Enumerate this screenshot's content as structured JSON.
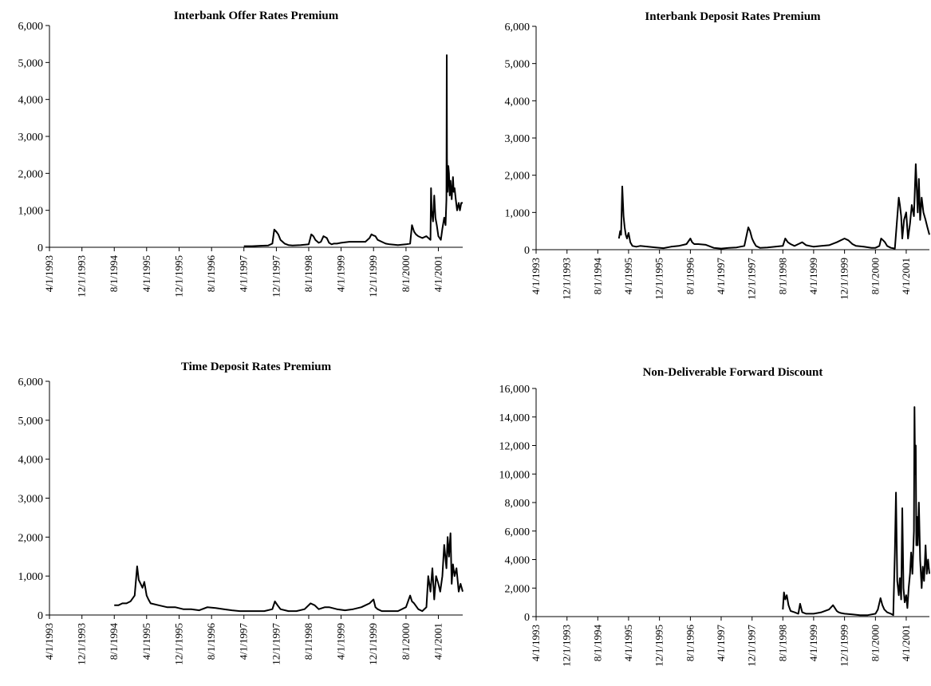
{
  "chart_data": [
    {
      "type": "line",
      "title": "Interbank Offer Rates Premium",
      "x_tick_labels": [
        "4/1/1993",
        "12/1/1993",
        "8/1/1994",
        "4/1/1995",
        "12/1/1995",
        "8/1/1996",
        "4/1/1997",
        "12/1/1997",
        "8/1/1998",
        "4/1/1999",
        "12/1/1999",
        "8/1/2000",
        "4/1/2001"
      ],
      "y_tick_labels": [
        "0",
        "1,000",
        "2,000",
        "3,000",
        "4,000",
        "5,000",
        "6,000"
      ],
      "ylim": [
        0,
        6000
      ],
      "xlim": [
        "4/1/1993",
        "10/1/2001"
      ],
      "grid": false,
      "series": [
        {
          "color": "#000000",
          "x": [
            "4/1/1997",
            "6/1/1997",
            "8/1/1997",
            "10/1/1997",
            "11/1/1997",
            "11/15/1997",
            "12/1/1997",
            "12/15/1997",
            "1/1/1998",
            "2/1/1998",
            "3/1/1998",
            "4/1/1998",
            "6/1/1998",
            "8/1/1998",
            "8/20/1998",
            "9/5/1998",
            "9/20/1998",
            "10/15/1998",
            "11/1/1998",
            "11/20/1998",
            "12/15/1998",
            "1/1/1999",
            "1/20/1999",
            "2/5/1999",
            "3/1/1999",
            "4/1/1999",
            "6/1/1999",
            "8/1/1999",
            "10/1/1999",
            "11/1/1999",
            "11/15/1999",
            "12/1/1999",
            "12/15/1999",
            "1/1/2000",
            "2/1/2000",
            "3/1/2000",
            "4/1/2000",
            "6/1/2000",
            "8/1/2000",
            "9/1/2000",
            "9/15/2000",
            "10/1/2000",
            "10/15/2000",
            "11/1/2000",
            "12/1/2000",
            "1/1/2001",
            "2/1/2001",
            "2/5/2001",
            "2/10/2001",
            "2/20/2001",
            "3/1/2001",
            "3/10/2001",
            "3/20/2001",
            "4/1/2001",
            "4/20/2001",
            "5/1/2001",
            "5/15/2001",
            "5/25/2001",
            "6/1/2001",
            "6/3/2001",
            "6/5/2001",
            "6/10/2001",
            "6/15/2001",
            "6/20/2001",
            "6/25/2001",
            "7/1/2001",
            "7/10/2001",
            "7/20/2001",
            "7/25/2001",
            "8/1/2001",
            "8/10/2001",
            "8/20/2001",
            "9/1/2001",
            "9/10/2001",
            "9/20/2001",
            "10/1/2001"
          ],
          "y": [
            30,
            30,
            40,
            50,
            100,
            480,
            420,
            350,
            200,
            100,
            60,
            50,
            60,
            80,
            350,
            300,
            200,
            120,
            150,
            300,
            250,
            120,
            80,
            100,
            100,
            120,
            150,
            150,
            150,
            250,
            350,
            320,
            300,
            200,
            150,
            100,
            80,
            60,
            80,
            100,
            600,
            420,
            350,
            300,
            250,
            300,
            200,
            1600,
            1000,
            700,
            1400,
            800,
            600,
            300,
            200,
            500,
            800,
            600,
            1300,
            5200,
            2400,
            1500,
            2200,
            2000,
            1400,
            1800,
            1300,
            1900,
            1500,
            1600,
            1300,
            1000,
            1200,
            1000,
            1200,
            1200
          ]
        }
      ]
    },
    {
      "type": "line",
      "title": "Interbank Deposit Rates Premium",
      "x_tick_labels": [
        "4/1/1993",
        "12/1/1993",
        "8/1/1994",
        "4/1/1995",
        "12/1/1995",
        "8/1/1996",
        "4/1/1997",
        "12/1/1997",
        "8/1/1998",
        "4/1/1999",
        "12/1/1999",
        "8/1/2000",
        "4/1/2001"
      ],
      "y_tick_labels": [
        "0",
        "1,000",
        "2,000",
        "3,000",
        "4,000",
        "5,000",
        "6,000"
      ],
      "ylim": [
        0,
        6000
      ],
      "xlim": [
        "4/1/1993",
        "10/1/2001"
      ],
      "grid": false,
      "series": [
        {
          "color": "#000000",
          "x": [
            "1/15/1995",
            "1/25/1995",
            "2/1/1995",
            "2/10/1995",
            "2/20/1995",
            "3/1/1995",
            "3/10/1995",
            "3/20/1995",
            "4/1/1995",
            "4/15/1995",
            "5/1/1995",
            "6/1/1995",
            "7/1/1995",
            "9/1/1995",
            "11/1/1995",
            "1/1/1996",
            "3/1/1996",
            "5/1/1996",
            "7/1/1996",
            "8/1/1996",
            "8/15/1996",
            "9/1/1996",
            "10/1/1996",
            "12/1/1996",
            "2/1/1997",
            "4/1/1997",
            "6/1/1997",
            "8/1/1997",
            "10/1/1997",
            "11/1/1997",
            "11/15/1997",
            "12/1/1997",
            "12/15/1997",
            "1/1/1998",
            "2/1/1998",
            "4/1/1998",
            "6/1/1998",
            "8/1/1998",
            "8/20/1998",
            "9/10/1998",
            "10/1/1998",
            "11/1/1998",
            "12/1/1998",
            "1/1/1999",
            "2/1/1999",
            "4/1/1999",
            "6/1/1999",
            "8/1/1999",
            "10/1/1999",
            "12/1/1999",
            "1/1/2000",
            "2/1/2000",
            "3/1/2000",
            "5/1/2000",
            "7/1/2000",
            "8/1/2000",
            "9/1/2000",
            "9/15/2000",
            "10/1/2000",
            "10/15/2000",
            "11/1/2000",
            "12/1/2000",
            "1/1/2001",
            "2/1/2001",
            "2/10/2001",
            "2/20/2001",
            "3/1/2001",
            "3/15/2001",
            "4/1/2001",
            "4/15/2001",
            "5/1/2001",
            "5/15/2001",
            "6/1/2001",
            "6/15/2001",
            "7/1/2001",
            "7/10/2001",
            "7/20/2001",
            "8/1/2001",
            "8/15/2001",
            "9/1/2001",
            "9/15/2001",
            "10/1/2001"
          ],
          "y": [
            300,
            500,
            400,
            1700,
            900,
            600,
            400,
            300,
            450,
            200,
            100,
            80,
            100,
            80,
            60,
            40,
            80,
            100,
            150,
            300,
            200,
            150,
            150,
            130,
            50,
            30,
            50,
            60,
            100,
            600,
            500,
            300,
            200,
            100,
            50,
            60,
            80,
            100,
            300,
            200,
            150,
            100,
            150,
            200,
            120,
            80,
            100,
            120,
            200,
            300,
            250,
            150,
            100,
            80,
            50,
            50,
            100,
            300,
            250,
            200,
            100,
            50,
            30,
            1400,
            1200,
            900,
            300,
            800,
            1000,
            300,
            700,
            1200,
            900,
            2300,
            1000,
            1900,
            800,
            1400,
            1000,
            800,
            600,
            400
          ]
        }
      ]
    },
    {
      "type": "line",
      "title": "Time Deposit Rates Premium",
      "x_tick_labels": [
        "4/1/1993",
        "12/1/1993",
        "8/1/1994",
        "4/1/1995",
        "12/1/1995",
        "8/1/1996",
        "4/1/1997",
        "12/1/1997",
        "8/1/1998",
        "4/1/1999",
        "12/1/1999",
        "8/1/2000",
        "4/1/2001"
      ],
      "y_tick_labels": [
        "0",
        "1,000",
        "2,000",
        "3,000",
        "4,000",
        "5,000",
        "6,000"
      ],
      "ylim": [
        0,
        6000
      ],
      "xlim": [
        "4/1/1993",
        "10/1/2001"
      ],
      "grid": false,
      "series": [
        {
          "color": "#000000",
          "x": [
            "8/1/1994",
            "9/1/1994",
            "10/1/1994",
            "11/1/1994",
            "12/1/1994",
            "1/1/1995",
            "1/20/1995",
            "2/1/1995",
            "2/15/1995",
            "3/1/1995",
            "3/15/1995",
            "4/1/1995",
            "4/15/1995",
            "5/1/1995",
            "7/1/1995",
            "9/1/1995",
            "11/1/1995",
            "1/1/1996",
            "3/1/1996",
            "5/1/1996",
            "7/1/1996",
            "9/1/1996",
            "11/1/1996",
            "1/1/1997",
            "3/1/1997",
            "5/1/1997",
            "7/1/1997",
            "9/1/1997",
            "11/1/1997",
            "11/20/1997",
            "12/10/1997",
            "1/1/1998",
            "3/1/1998",
            "5/1/1998",
            "7/1/1998",
            "8/15/1998",
            "9/15/1998",
            "10/15/1998",
            "12/1/1998",
            "1/1/1999",
            "3/1/1999",
            "5/1/1999",
            "7/1/1999",
            "9/1/1999",
            "10/1/1999",
            "11/1/1999",
            "12/1/1999",
            "12/15/1999",
            "1/1/2000",
            "2/1/2000",
            "4/1/2000",
            "6/1/2000",
            "8/1/2000",
            "9/1/2000",
            "9/15/2000",
            "10/1/2000",
            "11/1/2000",
            "12/1/2000",
            "1/1/2001",
            "1/15/2001",
            "2/1/2001",
            "2/15/2001",
            "3/1/2001",
            "3/15/2001",
            "4/1/2001",
            "4/15/2001",
            "5/1/2001",
            "5/15/2001",
            "6/1/2001",
            "6/10/2001",
            "6/20/2001",
            "7/1/2001",
            "7/10/2001",
            "7/20/2001",
            "8/1/2001",
            "8/15/2001",
            "9/1/2001",
            "9/15/2001",
            "10/1/2001"
          ],
          "y": [
            250,
            250,
            300,
            300,
            350,
            500,
            1250,
            900,
            800,
            700,
            850,
            500,
            400,
            300,
            250,
            200,
            200,
            150,
            150,
            120,
            200,
            180,
            150,
            120,
            100,
            100,
            100,
            100,
            150,
            350,
            250,
            150,
            100,
            100,
            150,
            300,
            250,
            150,
            200,
            200,
            150,
            120,
            150,
            200,
            250,
            300,
            400,
            200,
            150,
            100,
            100,
            100,
            200,
            500,
            350,
            300,
            150,
            100,
            200,
            1000,
            600,
            1200,
            400,
            1000,
            800,
            600,
            1000,
            1800,
            1200,
            2000,
            1500,
            2100,
            800,
            1300,
            1000,
            1200,
            600,
            800,
            600
          ]
        }
      ]
    },
    {
      "type": "line",
      "title": "Non-Deliverable Forward Discount",
      "x_tick_labels": [
        "4/1/1993",
        "12/1/1993",
        "8/1/1994",
        "4/1/1995",
        "12/1/1995",
        "8/1/1996",
        "4/1/1997",
        "12/1/1997",
        "8/1/1998",
        "4/1/1999",
        "12/1/1999",
        "8/1/2000",
        "4/1/2001"
      ],
      "y_tick_labels": [
        "0",
        "2,000",
        "4,000",
        "6,000",
        "8,000",
        "10,000",
        "12,000",
        "14,000",
        "16,000"
      ],
      "ylim": [
        0,
        16000
      ],
      "xlim": [
        "4/1/1993",
        "10/1/2001"
      ],
      "grid": false,
      "series": [
        {
          "color": "#000000",
          "x": [
            "8/1/1998",
            "8/10/1998",
            "8/20/1998",
            "9/1/1998",
            "9/15/1998",
            "10/1/1998",
            "11/1/1998",
            "12/1/1998",
            "12/15/1998",
            "1/1/1999",
            "2/1/1999",
            "4/1/1999",
            "6/1/1999",
            "8/1/1999",
            "9/1/1999",
            "10/1/1999",
            "10/15/1999",
            "11/1/1999",
            "12/1/1999",
            "2/1/2000",
            "4/1/2000",
            "6/1/2000",
            "8/1/2000",
            "8/20/2000",
            "9/10/2000",
            "9/25/2000",
            "10/10/2000",
            "11/1/2000",
            "12/1/2000",
            "12/20/2000",
            "1/1/2001",
            "1/10/2001",
            "1/20/2001",
            "2/1/2001",
            "2/10/2001",
            "2/20/2001",
            "3/1/2001",
            "3/10/2001",
            "3/20/2001",
            "4/1/2001",
            "4/10/2001",
            "4/20/2001",
            "5/1/2001",
            "5/10/2001",
            "5/20/2001",
            "6/1/2001",
            "6/5/2001",
            "6/10/2001",
            "6/15/2001",
            "6/20/2001",
            "6/25/2001",
            "7/1/2001",
            "7/10/2001",
            "7/15/2001",
            "7/20/2001",
            "8/1/2001",
            "8/10/2001",
            "8/20/2001",
            "9/1/2001",
            "9/10/2001",
            "9/20/2001",
            "10/1/2001"
          ],
          "y": [
            500,
            1700,
            1200,
            1500,
            800,
            400,
            300,
            200,
            900,
            300,
            200,
            200,
            300,
            500,
            800,
            400,
            300,
            250,
            200,
            150,
            100,
            100,
            200,
            500,
            1300,
            800,
            500,
            300,
            200,
            100,
            4500,
            8700,
            2500,
            1500,
            2700,
            1200,
            7600,
            2000,
            1000,
            1500,
            600,
            2000,
            3000,
            4500,
            3000,
            6000,
            14700,
            10000,
            12000,
            5000,
            7000,
            5000,
            8000,
            6000,
            4000,
            2000,
            3500,
            2500,
            5000,
            3000,
            4000,
            3000
          ]
        }
      ]
    }
  ]
}
